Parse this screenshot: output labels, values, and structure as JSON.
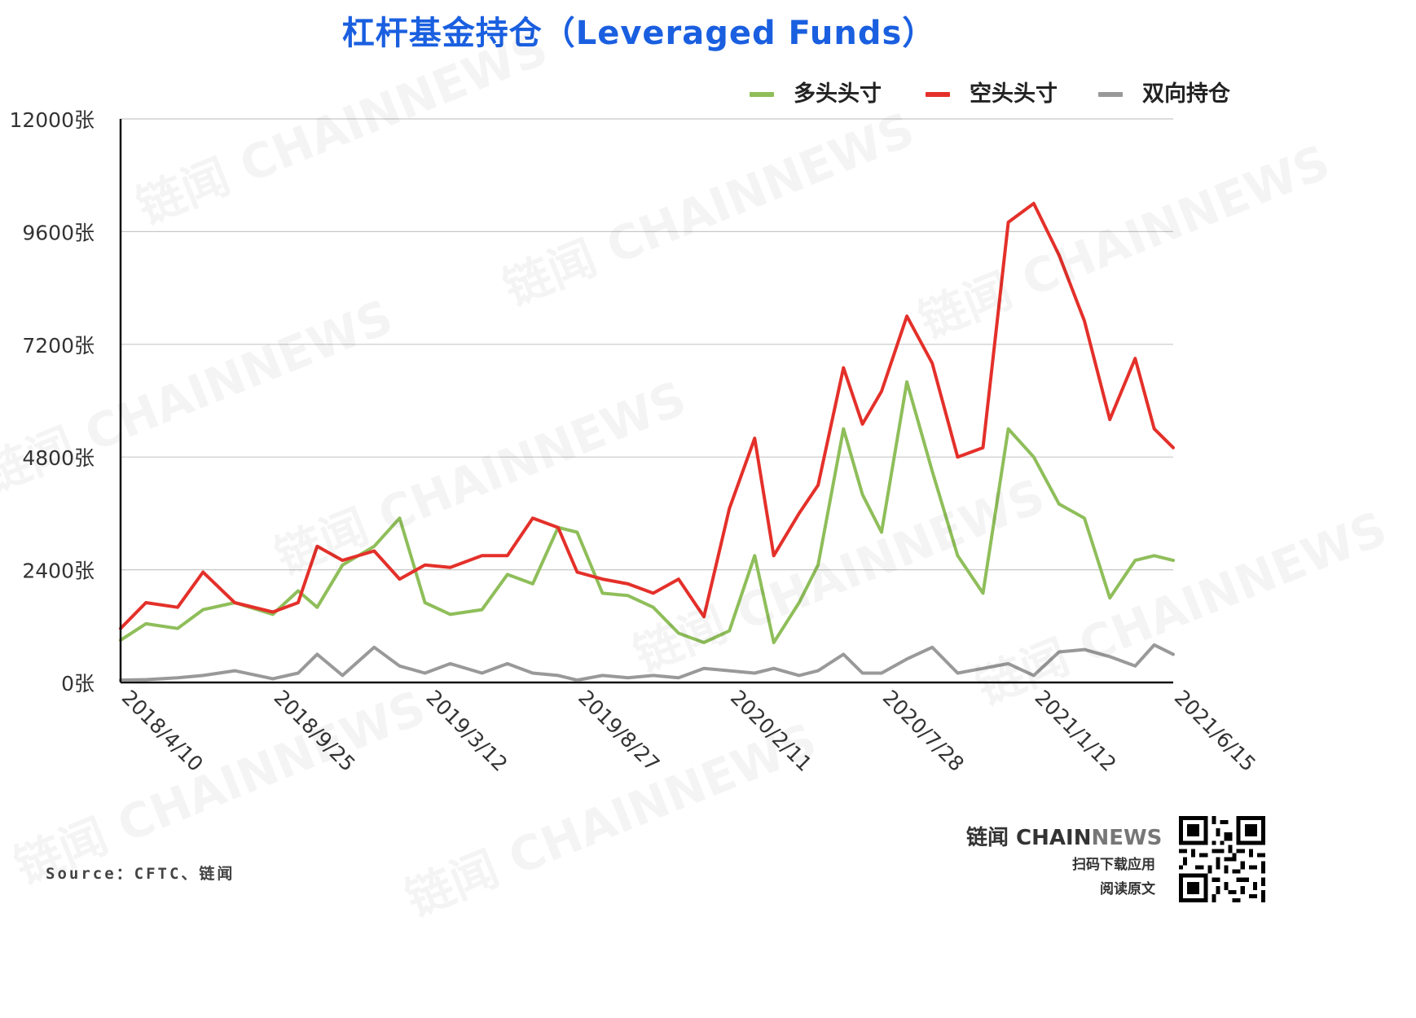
{
  "title": "杠杆基金持仓（Leveraged Funds）",
  "legend": [
    {
      "label": "多头头寸",
      "color": "#8fbe5a"
    },
    {
      "label": "空头头寸",
      "color": "#e4302a"
    },
    {
      "label": "双向持仓",
      "color": "#999999"
    }
  ],
  "source": "Source：CFTC、链闻",
  "brand": {
    "name_part1": "链闻 CHAIN",
    "name_part2": "NEWS",
    "cta_line1": "扫码下载应用",
    "cta_line2": "阅读原文",
    "watermark": "链闻 CHAINNEWS"
  },
  "chart_data": {
    "type": "line",
    "title": "杠杆基金持仓（Leveraged Funds）",
    "ylim": [
      0,
      12000
    ],
    "y_ticks": [
      "0张",
      "2400张",
      "4800张",
      "7200张",
      "9600张",
      "12000张"
    ],
    "y_tick_values": [
      0,
      2400,
      4800,
      7200,
      9600,
      12000
    ],
    "x_ticks": [
      "2018/4/10",
      "2018/9/25",
      "2019/3/12",
      "2019/8/27",
      "2020/2/11",
      "2020/7/28",
      "2021/1/12",
      "2021/6/15"
    ],
    "grid": true,
    "legend_position": "top-right",
    "series": [
      {
        "name": "多头头寸",
        "color": "#8fbe5a",
        "x": [
          "2018/4/10",
          "2018/5/8",
          "2018/6/12",
          "2018/7/10",
          "2018/8/14",
          "2018/9/25",
          "2018/10/23",
          "2018/11/13",
          "2018/12/11",
          "2019/1/15",
          "2019/2/12",
          "2019/3/12",
          "2019/4/9",
          "2019/5/14",
          "2019/6/11",
          "2019/7/9",
          "2019/8/6",
          "2019/8/27",
          "2019/9/24",
          "2019/10/22",
          "2019/11/19",
          "2019/12/17",
          "2020/1/14",
          "2020/2/11",
          "2020/3/10",
          "2020/3/31",
          "2020/4/28",
          "2020/5/19",
          "2020/6/16",
          "2020/7/7",
          "2020/7/28",
          "2020/8/25",
          "2020/9/22",
          "2020/10/20",
          "2020/11/17",
          "2020/12/15",
          "2021/1/12",
          "2021/2/9",
          "2021/3/9",
          "2021/4/6",
          "2021/5/4",
          "2021/5/25",
          "2021/6/15"
        ],
        "values": [
          900,
          1250,
          1150,
          1550,
          1700,
          1450,
          1950,
          1600,
          2500,
          2900,
          3500,
          1700,
          1450,
          1550,
          2300,
          2100,
          3300,
          3200,
          1900,
          1850,
          1600,
          1050,
          850,
          1100,
          2700,
          850,
          1700,
          2500,
          5400,
          4000,
          3200,
          6400,
          4500,
          2700,
          1900,
          5400,
          4800,
          3800,
          3500,
          1800,
          2600,
          2700,
          2600
        ]
      },
      {
        "name": "空头头寸",
        "color": "#e4302a",
        "x": [
          "2018/4/10",
          "2018/5/8",
          "2018/6/12",
          "2018/7/10",
          "2018/8/14",
          "2018/9/25",
          "2018/10/23",
          "2018/11/13",
          "2018/12/11",
          "2019/1/15",
          "2019/2/12",
          "2019/3/12",
          "2019/4/9",
          "2019/5/14",
          "2019/6/11",
          "2019/7/9",
          "2019/8/6",
          "2019/8/27",
          "2019/9/24",
          "2019/10/22",
          "2019/11/19",
          "2019/12/17",
          "2020/1/14",
          "2020/2/11",
          "2020/3/10",
          "2020/3/31",
          "2020/4/28",
          "2020/5/19",
          "2020/6/16",
          "2020/7/7",
          "2020/7/28",
          "2020/8/25",
          "2020/9/22",
          "2020/10/20",
          "2020/11/17",
          "2020/12/15",
          "2021/1/12",
          "2021/2/9",
          "2021/3/9",
          "2021/4/6",
          "2021/5/4",
          "2021/5/25",
          "2021/6/15"
        ],
        "values": [
          1150,
          1700,
          1600,
          2350,
          1700,
          1500,
          1700,
          2900,
          2600,
          2800,
          2200,
          2500,
          2450,
          2700,
          2700,
          3500,
          3300,
          2350,
          2200,
          2100,
          1900,
          2200,
          1400,
          3700,
          5200,
          2700,
          3600,
          4200,
          6700,
          5500,
          6200,
          7800,
          6800,
          4800,
          5000,
          9800,
          10200,
          9100,
          7700,
          5600,
          6900,
          5400,
          5000
        ]
      },
      {
        "name": "双向持仓",
        "color": "#999999",
        "x": [
          "2018/4/10",
          "2018/5/8",
          "2018/6/12",
          "2018/7/10",
          "2018/8/14",
          "2018/9/25",
          "2018/10/23",
          "2018/11/13",
          "2018/12/11",
          "2019/1/15",
          "2019/2/12",
          "2019/3/12",
          "2019/4/9",
          "2019/5/14",
          "2019/6/11",
          "2019/7/9",
          "2019/8/6",
          "2019/8/27",
          "2019/9/24",
          "2019/10/22",
          "2019/11/19",
          "2019/12/17",
          "2020/1/14",
          "2020/2/11",
          "2020/3/10",
          "2020/3/31",
          "2020/4/28",
          "2020/5/19",
          "2020/6/16",
          "2020/7/7",
          "2020/7/28",
          "2020/8/25",
          "2020/9/22",
          "2020/10/20",
          "2020/11/17",
          "2020/12/15",
          "2021/1/12",
          "2021/2/9",
          "2021/3/9",
          "2021/4/6",
          "2021/5/4",
          "2021/5/25",
          "2021/6/15"
        ],
        "values": [
          50,
          60,
          100,
          150,
          250,
          80,
          200,
          600,
          150,
          750,
          350,
          200,
          400,
          200,
          400,
          200,
          150,
          50,
          150,
          100,
          150,
          100,
          300,
          250,
          200,
          300,
          150,
          250,
          600,
          200,
          200,
          500,
          750,
          200,
          300,
          400,
          150,
          650,
          700,
          550,
          350,
          800,
          600
        ]
      }
    ]
  }
}
